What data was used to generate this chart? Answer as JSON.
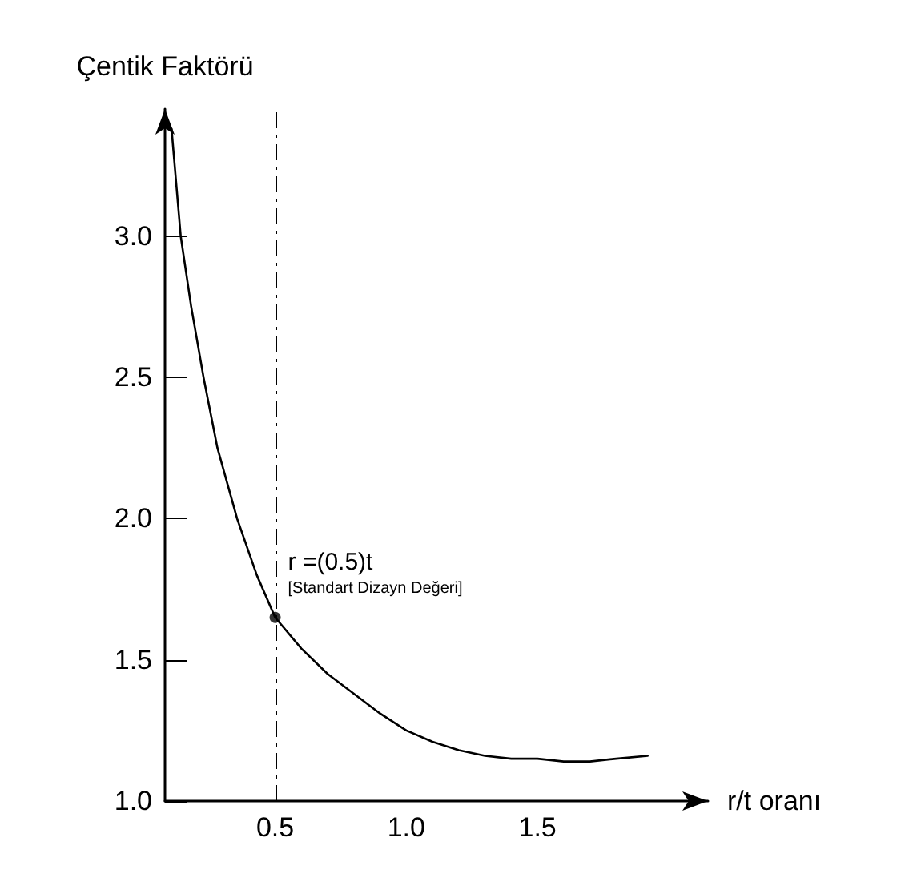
{
  "chart_data": {
    "type": "line",
    "xlabel": "r/t oranı",
    "ylabel": "Çentik Faktörü",
    "series": [
      {
        "color": "#000000",
        "marker": "none",
        "line_style": "solid",
        "x": [
          0.105,
          0.14,
          0.18,
          0.227,
          0.28,
          0.355,
          0.43,
          0.5,
          0.6,
          0.7,
          0.8,
          0.9,
          1.0,
          1.1,
          1.2,
          1.3,
          1.4,
          1.5,
          1.6,
          1.7,
          1.8,
          1.92
        ],
        "values": [
          3.38,
          3.0,
          2.75,
          2.5,
          2.25,
          2.0,
          1.8,
          1.65,
          1.54,
          1.45,
          1.38,
          1.31,
          1.25,
          1.21,
          1.18,
          1.16,
          1.15,
          1.15,
          1.14,
          1.14,
          1.15,
          1.16
        ]
      },
      {
        "type": "scatter",
        "color": "#000000",
        "marker": "circle",
        "x": [
          0.5
        ],
        "values": [
          1.65
        ]
      }
    ],
    "xlim": [
      0.08,
      2.15
    ],
    "ylim": [
      1.0,
      3.45
    ],
    "xticks": [
      0.5,
      {
        "value": 1,
        "label": "1.0"
      },
      1.5
    ],
    "yticks": [
      {
        "value": 1,
        "label": "1.0"
      },
      1.5,
      {
        "value": 2,
        "label": "2.0"
      },
      2.5,
      {
        "value": 3,
        "label": "3.0"
      }
    ],
    "ref_lines": [
      {
        "axis": "x",
        "value": 0.5,
        "color": "#000000",
        "line_style": "dashed"
      }
    ],
    "annotations": [
      {
        "text": "r =(0.5)t",
        "x": 0.5,
        "y": 1.65
      },
      "[Standart Dizayn Değeri]"
    ],
    "grid": false
  }
}
